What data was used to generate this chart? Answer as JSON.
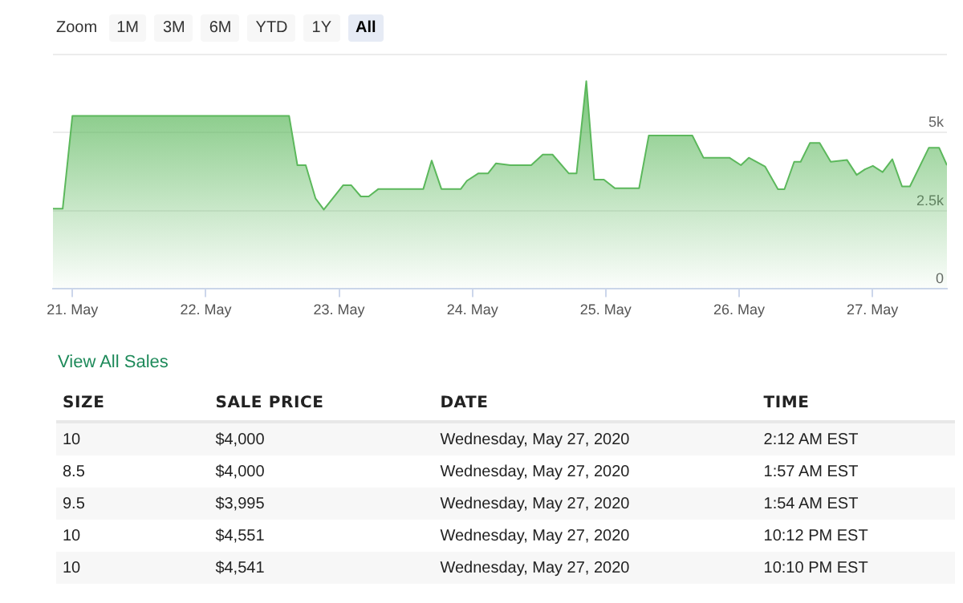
{
  "chart_data": {
    "type": "area",
    "x": [
      "2020-05-20T20:30",
      "2020-05-20T22:15",
      "2020-05-21T00:00",
      "2020-05-22T15:00",
      "2020-05-22T16:30",
      "2020-05-22T18:00",
      "2020-05-22T19:45",
      "2020-05-22T21:15",
      "2020-05-23T00:45",
      "2020-05-23T02:10",
      "2020-05-23T03:55",
      "2020-05-23T05:20",
      "2020-05-23T07:05",
      "2020-05-23T15:10",
      "2020-05-23T16:40",
      "2020-05-23T18:25",
      "2020-05-23T21:55",
      "2020-05-23T23:00",
      "2020-05-24T01:05",
      "2020-05-24T02:50",
      "2020-05-24T04:15",
      "2020-05-24T06:50",
      "2020-05-24T10:35",
      "2020-05-24T12:40",
      "2020-05-24T14:25",
      "2020-05-24T17:20",
      "2020-05-24T18:45",
      "2020-05-24T20:30",
      "2020-05-24T21:55",
      "2020-05-24T23:40",
      "2020-05-25T01:40",
      "2020-05-25T06:00",
      "2020-05-25T07:45",
      "2020-05-25T15:35",
      "2020-05-25T17:35",
      "2020-05-25T22:15",
      "2020-05-26T00:20",
      "2020-05-26T01:45",
      "2020-05-26T04:40",
      "2020-05-26T07:00",
      "2020-05-26T08:10",
      "2020-05-26T09:55",
      "2020-05-26T11:05",
      "2020-05-26T12:45",
      "2020-05-26T14:30",
      "2020-05-26T16:30",
      "2020-05-26T19:25",
      "2020-05-26T21:10",
      "2020-05-26T22:40",
      "2020-05-27T00:05",
      "2020-05-27T01:50",
      "2020-05-27T03:35",
      "2020-05-27T05:20",
      "2020-05-27T06:45",
      "2020-05-27T10:10",
      "2020-05-27T12:00",
      "2020-05-27T13:25"
    ],
    "series": [
      {
        "color": "#5cb85c",
        "values": [
          2570,
          2570,
          5540,
          5540,
          3960,
          3960,
          2900,
          2540,
          3320,
          3320,
          2960,
          2960,
          3200,
          3200,
          4110,
          3200,
          3200,
          3460,
          3700,
          3700,
          4020,
          3960,
          3960,
          4300,
          4300,
          3700,
          3700,
          6650,
          3500,
          3500,
          3220,
          3220,
          4910,
          4910,
          4200,
          4200,
          3960,
          4200,
          3920,
          3190,
          3190,
          4070,
          4070,
          4670,
          4670,
          4070,
          4130,
          3650,
          3830,
          3940,
          3740,
          4150,
          3280,
          3280,
          4520,
          4520,
          3960
        ]
      }
    ],
    "xlim": [
      "2020-05-20T20:30",
      "2020-05-27T13:25"
    ],
    "xticks": [
      {
        "value": "2020-05-21",
        "label": "21. May"
      },
      {
        "value": "2020-05-22",
        "label": "22. May"
      },
      {
        "value": "2020-05-23",
        "label": "23. May"
      },
      {
        "value": "2020-05-24",
        "label": "24. May"
      },
      {
        "value": "2020-05-25",
        "label": "25. May"
      },
      {
        "value": "2020-05-26",
        "label": "26. May"
      },
      {
        "value": "2020-05-27",
        "label": "27. May"
      }
    ],
    "ylim": [
      0,
      7500
    ],
    "yticks": [
      0,
      {
        "value": 2500,
        "label": "2.5k"
      },
      {
        "value": 5000,
        "label": "5k"
      },
      {
        "value": 7500,
        "label": null
      }
    ],
    "grid": "y",
    "legend": false,
    "marker": "none",
    "line_style": "solid",
    "annotations": [
      "Zoom",
      "1M",
      "3M",
      "6M",
      "YTD",
      "1Y",
      "All",
      "View All Sales",
      "SIZE",
      "SALE PRICE",
      "DATE",
      "TIME",
      "10",
      "$4,000",
      "Wednesday, May 27, 2020",
      "2:12 AM EST",
      "8.5",
      "$4,000",
      "Wednesday, May 27, 2020",
      "1:57 AM EST",
      "9.5",
      "$3,995",
      "Wednesday, May 27, 2020",
      "1:54 AM EST",
      "10",
      "$4,551",
      "Wednesday, May 27, 2020",
      "10:12 PM EST",
      "10",
      "$4,541",
      "Wednesday, May 27, 2020",
      "10:10 PM EST"
    ]
  }
}
